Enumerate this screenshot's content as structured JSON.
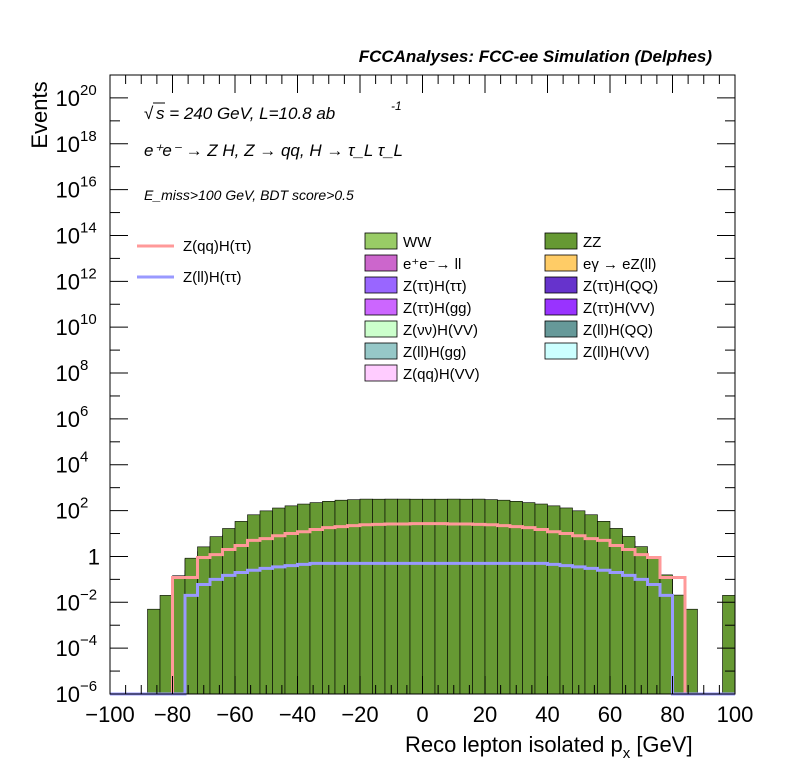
{
  "header": {
    "title": "FCCAnalyses: FCC-ee Simulation (Delphes)"
  },
  "annotations": {
    "energy_line": "s = 240 GeV, L=10.8 ab",
    "energy_sqrt": "√",
    "lumi_exp": "-1",
    "process_line": "e⁺e⁻ → Z H, Z → qq, H → τ_L τ_L",
    "cut_line": "E_miss>100 GeV, BDT score>0.5"
  },
  "chart_data": {
    "type": "histogram-stacked-log",
    "xlabel": "Reco lepton isolated p",
    "xlabel_sub": "x",
    "xlabel_unit": " [GeV]",
    "ylabel": "Events",
    "xlim": [
      -100,
      100
    ],
    "ylim": [
      1e-06,
      1e+21
    ],
    "log_y": true,
    "x_ticks": [
      -100,
      -80,
      -60,
      -40,
      -20,
      0,
      20,
      40,
      60,
      80,
      100
    ],
    "x_tick_labels": [
      "−100",
      "−80",
      "−60",
      "−40",
      "−20",
      "0",
      "20",
      "40",
      "60",
      "80",
      "100"
    ],
    "y_ticks": [
      {
        "value": 1e-06,
        "base": "10",
        "exp": "−6"
      },
      {
        "value": 0.0001,
        "base": "10",
        "exp": "−4"
      },
      {
        "value": 0.01,
        "base": "10",
        "exp": "−2"
      },
      {
        "value": 1,
        "base": "1",
        "exp": ""
      },
      {
        "value": 100.0,
        "base": "10",
        "exp": "2"
      },
      {
        "value": 10000.0,
        "base": "10",
        "exp": "4"
      },
      {
        "value": 1000000.0,
        "base": "10",
        "exp": "6"
      },
      {
        "value": 100000000.0,
        "base": "10",
        "exp": "8"
      },
      {
        "value": 10000000000.0,
        "base": "10",
        "exp": "10"
      },
      {
        "value": 1000000000000.0,
        "base": "10",
        "exp": "12"
      },
      {
        "value": 100000000000000.0,
        "base": "10",
        "exp": "14"
      },
      {
        "value": 1e+16,
        "base": "10",
        "exp": "16"
      },
      {
        "value": 1e+18,
        "base": "10",
        "exp": "18"
      },
      {
        "value": 1e+20,
        "base": "10",
        "exp": "20"
      }
    ],
    "bin_edges": [
      -100,
      -96,
      -92,
      -88,
      -84,
      -80,
      -76,
      -72,
      -68,
      -64,
      -60,
      -56,
      -52,
      -48,
      -44,
      -40,
      -36,
      -32,
      -28,
      -24,
      -20,
      -16,
      -12,
      -8,
      -4,
      0,
      4,
      8,
      12,
      16,
      20,
      24,
      28,
      32,
      36,
      40,
      44,
      48,
      52,
      56,
      60,
      64,
      68,
      72,
      76,
      80,
      84,
      88,
      92,
      96,
      100
    ],
    "background_stack": [
      {
        "name": "Z(ll)H(gg)",
        "color": "#96c8c8",
        "values": [
          0,
          0,
          0,
          0,
          0,
          0,
          0,
          0,
          0,
          0.0002,
          0.012,
          0.012,
          0.012,
          0.012,
          0.012,
          0.012,
          0.012,
          0.012,
          0.012,
          0.012,
          0.012,
          0.012,
          0.012,
          0.012,
          0.012,
          0.012,
          0.012,
          0.012,
          0.012,
          0.012,
          0.012,
          0.012,
          0.012,
          0.012,
          0.012,
          0.012,
          0.012,
          0.012,
          0.012,
          0.012,
          0.012,
          0.012,
          0.012,
          0.012,
          0.0002,
          0,
          0,
          0,
          0,
          0
        ]
      },
      {
        "name": "eγ → eZ(ll)",
        "color": "#ffcc66",
        "values": [
          0,
          0,
          0,
          0,
          0,
          0,
          0,
          0,
          0,
          0,
          0,
          0,
          0,
          0,
          0,
          0,
          0,
          0,
          0,
          0,
          0.0,
          0.012,
          0,
          0.012,
          0.012,
          0.012,
          0.012,
          0,
          0.012,
          0.012,
          0,
          0,
          0,
          0,
          0,
          0,
          0,
          0,
          0,
          0,
          0,
          0,
          0,
          0,
          0,
          0,
          0,
          0,
          0,
          0
        ]
      },
      {
        "name": "Z(νν)H(VV)",
        "color": "#ccffcc",
        "values": [
          0,
          0,
          0,
          0,
          0,
          0.004,
          0.03,
          0.08,
          0.12,
          0.16,
          0.2,
          0.22,
          0.24,
          0.25,
          0.26,
          0.26,
          0.26,
          0.26,
          0.26,
          0.26,
          0.26,
          0.26,
          0.26,
          0.26,
          0.26,
          0.26,
          0.26,
          0.26,
          0.26,
          0.26,
          0.26,
          0.26,
          0.26,
          0.26,
          0.26,
          0.25,
          0.24,
          0.22,
          0.2,
          0.16,
          0.12,
          0.08,
          0.04,
          0.02,
          0.008,
          0,
          0,
          0,
          0,
          0
        ]
      },
      {
        "name": "Z(ττ)H(VV)",
        "color": "#9933ff",
        "values": [
          0,
          0,
          0,
          0,
          0,
          0,
          0,
          0,
          0.002,
          0.003,
          0.004,
          0.005,
          0.006,
          0.007,
          0.008,
          0.008,
          0.008,
          0.008,
          0.008,
          0.008,
          0.008,
          0.008,
          0.008,
          0.008,
          0.008,
          0.008,
          0.008,
          0.008,
          0.008,
          0.008,
          0.008,
          0.008,
          0.008,
          0.008,
          0.008,
          0.007,
          0.006,
          0.005,
          0.004,
          0.003,
          0.002,
          0.002,
          0.002,
          0.003,
          0.004,
          0.0006,
          0,
          0,
          0,
          0
        ]
      },
      {
        "name": "Z(ττ)H(QQ)",
        "color": "#6633cc",
        "values": [
          0,
          0,
          0,
          0,
          0,
          0,
          0,
          0,
          0,
          0,
          0,
          0,
          0,
          0,
          0,
          0,
          0,
          0,
          0,
          0,
          0,
          0,
          0,
          0,
          0,
          0,
          0,
          0,
          0,
          0,
          0,
          0,
          0,
          0,
          0,
          0,
          0,
          0,
          0,
          0,
          0,
          0,
          0,
          0,
          2e-05,
          1e-05,
          0,
          0,
          0,
          0
        ]
      },
      {
        "name": "Z(ll)H(VV)",
        "color": "#ccffff",
        "values": [
          0,
          0,
          0,
          0,
          0,
          0,
          0.01,
          0.04,
          0.08,
          0.1,
          0.12,
          0.14,
          0.15,
          0.16,
          0.17,
          0.17,
          0.17,
          0.17,
          0.17,
          0.17,
          0.17,
          0.17,
          0.17,
          0.17,
          0.17,
          0.17,
          0.17,
          0.17,
          0.17,
          0.17,
          0.17,
          0.17,
          0.17,
          0.17,
          0.17,
          0.16,
          0.15,
          0.14,
          0.12,
          0.1,
          0.08,
          0.05,
          0.03,
          0.02,
          0.005,
          0,
          0,
          0,
          0,
          0
        ]
      },
      {
        "name": "Z(ττ)H(ττ)",
        "color": "#9966ff",
        "values": [
          0,
          0,
          0,
          0,
          0,
          0,
          0,
          0,
          0.02,
          0.3,
          0.5,
          0.5,
          0.3,
          0.6,
          0.8,
          0.8,
          0.8,
          0.8,
          0.8,
          0.8,
          0.8,
          0.8,
          0.8,
          0.8,
          0.8,
          0.8,
          0.8,
          0.8,
          0.8,
          0.8,
          0.8,
          0.8,
          0.8,
          0.8,
          0.8,
          0.8,
          0.8,
          0.6,
          0.5,
          0.5,
          0.3,
          0.05,
          0,
          0,
          0,
          0,
          0,
          0,
          0,
          0
        ]
      },
      {
        "name": "e⁺e⁻→ ll",
        "color": "#cc66cc",
        "values": [
          0,
          0,
          0,
          0,
          0,
          0,
          0,
          0,
          0,
          0,
          0,
          0,
          0,
          0,
          0,
          0,
          0,
          0,
          0,
          0.8,
          2.5,
          0,
          3.0,
          2.5,
          0,
          0,
          0,
          3.0,
          0,
          2.5,
          2.5,
          0,
          0,
          0,
          0,
          0,
          0,
          0,
          0,
          0,
          0,
          0,
          0,
          0,
          0,
          0,
          0,
          0,
          0,
          0
        ]
      },
      {
        "name": "Z(qq)H(VV)",
        "color": "#ffccff",
        "values": [
          0,
          0,
          0,
          0,
          0,
          0.09,
          0.2,
          0.5,
          0.8,
          1.2,
          1.5,
          2,
          2.5,
          3,
          3,
          3.5,
          3.5,
          3.5,
          3.5,
          3.5,
          3.5,
          3.5,
          3.5,
          3.5,
          3.5,
          3.5,
          3.5,
          3.5,
          3.5,
          3.5,
          3.5,
          3.5,
          3.5,
          3.5,
          3.5,
          3,
          3,
          2.5,
          2,
          1.5,
          1.2,
          0.8,
          0.5,
          0.2,
          0.09,
          0,
          0,
          0,
          0,
          0
        ]
      },
      {
        "name": "Z(ττ)H(gg)",
        "color": "#cc66ff",
        "values": [
          0,
          0,
          0,
          0,
          0,
          0,
          0,
          0,
          0.1,
          0.3,
          0.5,
          0.8,
          1,
          1.5,
          2,
          2,
          2.5,
          2.5,
          2.5,
          2.5,
          2.5,
          2.5,
          2.5,
          2.5,
          2.5,
          2.5,
          2.5,
          2.5,
          2.5,
          2.5,
          2.5,
          2.5,
          2.5,
          2.5,
          2.5,
          2,
          2,
          1.5,
          1,
          0.8,
          0.5,
          0.3,
          0.1,
          0,
          0,
          0,
          0,
          0,
          0,
          0
        ]
      },
      {
        "name": "Z(ll)H(QQ)",
        "color": "#669999",
        "values": [
          0,
          0,
          0,
          0,
          0,
          0,
          0,
          0,
          0.2,
          0.5,
          1,
          2,
          3,
          4,
          5,
          6,
          6,
          7,
          7,
          7,
          7,
          7,
          7,
          7,
          7,
          7,
          7,
          7,
          7,
          7,
          7,
          7,
          7,
          6,
          6,
          5,
          4,
          3,
          2,
          1,
          0.5,
          0.2,
          0,
          0,
          0,
          0,
          0,
          0,
          0,
          0
        ]
      },
      {
        "name": "WW",
        "color": "#99cc66",
        "values": [
          0,
          0,
          0,
          0,
          0,
          0,
          0.5,
          1,
          3,
          6,
          10,
          20,
          30,
          40,
          50,
          60,
          70,
          80,
          90,
          95,
          100,
          100,
          100,
          100,
          100,
          100,
          100,
          100,
          100,
          100,
          95,
          90,
          80,
          70,
          60,
          50,
          40,
          30,
          20,
          10,
          6,
          3,
          1,
          0.5,
          0,
          0,
          0,
          0,
          0,
          0
        ]
      },
      {
        "name": "ZZ",
        "color": "#669933",
        "values": [
          0,
          0,
          0,
          0.005,
          0.02,
          0.05,
          0.1,
          1,
          3,
          8,
          20,
          40,
          60,
          80,
          100,
          120,
          140,
          160,
          180,
          190,
          200,
          200,
          200,
          200,
          200,
          200,
          200,
          200,
          200,
          200,
          190,
          180,
          160,
          140,
          120,
          100,
          80,
          60,
          40,
          20,
          8,
          3,
          1,
          0.1,
          0.05,
          0.02,
          0.005,
          0,
          0,
          0.02
        ]
      }
    ],
    "signals": [
      {
        "name": "Z(qq)H(ττ)",
        "color": "#ff9999",
        "values": [
          0,
          0,
          0,
          0,
          1e-06,
          0.12,
          0.12,
          0.9,
          1.2,
          2,
          3,
          5,
          6,
          8,
          10,
          12,
          15,
          18,
          20,
          22,
          24,
          25,
          26,
          26,
          27,
          27,
          27,
          26,
          26,
          25,
          24,
          22,
          20,
          18,
          15,
          12,
          10,
          8,
          6,
          5,
          3,
          2,
          1.2,
          0.9,
          0.12,
          0.12,
          1e-06,
          0,
          0,
          0
        ]
      },
      {
        "name": "Z(ll)H(ττ)",
        "color": "#9999ff",
        "values": [
          0,
          0,
          0,
          0,
          0,
          1e-06,
          0.02,
          0.06,
          0.1,
          0.15,
          0.2,
          0.25,
          0.3,
          0.35,
          0.4,
          0.45,
          0.5,
          0.5,
          0.5,
          0.5,
          0.5,
          0.5,
          0.5,
          0.5,
          0.5,
          0.5,
          0.5,
          0.5,
          0.5,
          0.5,
          0.5,
          0.5,
          0.5,
          0.5,
          0.5,
          0.45,
          0.4,
          0.35,
          0.3,
          0.25,
          0.2,
          0.15,
          0.1,
          0.06,
          0.02,
          1e-06,
          0,
          0,
          0,
          0
        ]
      }
    ],
    "legend_left": [
      "Z(qq)H(ττ)",
      "Z(ll)H(ττ)"
    ],
    "legend_right": [
      [
        "WW",
        "ZZ"
      ],
      [
        "e⁺e⁻→ ll",
        "eγ → eZ(ll)"
      ],
      [
        "Z(ττ)H(ττ)",
        "Z(ττ)H(QQ)"
      ],
      [
        "Z(ττ)H(gg)",
        "Z(ττ)H(VV)"
      ],
      [
        "Z(νν)H(VV)",
        "Z(ll)H(QQ)"
      ],
      [
        "Z(ll)H(gg)",
        "Z(ll)H(VV)"
      ],
      [
        "Z(qq)H(VV)",
        ""
      ]
    ]
  }
}
